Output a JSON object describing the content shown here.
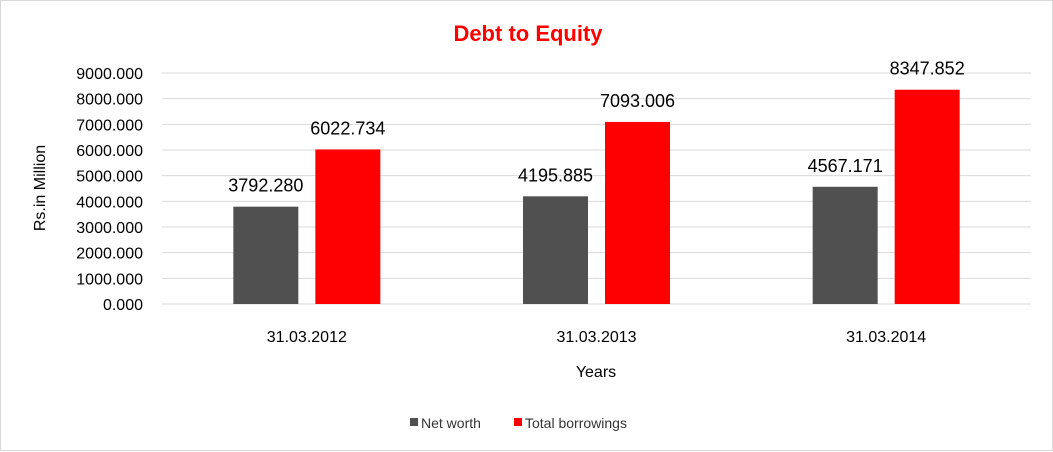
{
  "chart_data": {
    "type": "bar",
    "title": "Debt to Equity",
    "title_color": "#ff0000",
    "xlabel": "Years",
    "ylabel": "Rs.in Million",
    "categories": [
      "31.03.2012",
      "31.03.2013",
      "31.03.2014"
    ],
    "series": [
      {
        "name": "Net worth",
        "color": "#505050",
        "values": [
          3792.28,
          4195.885,
          4567.171
        ],
        "labels": [
          "3792.280",
          "4195.885",
          "4567.171"
        ]
      },
      {
        "name": "Total borrowings",
        "color": "#ff0000",
        "values": [
          6022.734,
          7093.006,
          8347.852
        ],
        "labels": [
          "6022.734",
          "7093.006",
          "8347.852"
        ]
      }
    ],
    "ylim": [
      0,
      9000
    ],
    "yticks": [
      0,
      1000,
      2000,
      3000,
      4000,
      5000,
      6000,
      7000,
      8000,
      9000
    ],
    "ytick_labels": [
      "0.000",
      "1000.000",
      "2000.000",
      "3000.000",
      "4000.000",
      "5000.000",
      "6000.000",
      "7000.000",
      "8000.000",
      "9000.000"
    ],
    "grid": true,
    "legend_position": "bottom"
  }
}
